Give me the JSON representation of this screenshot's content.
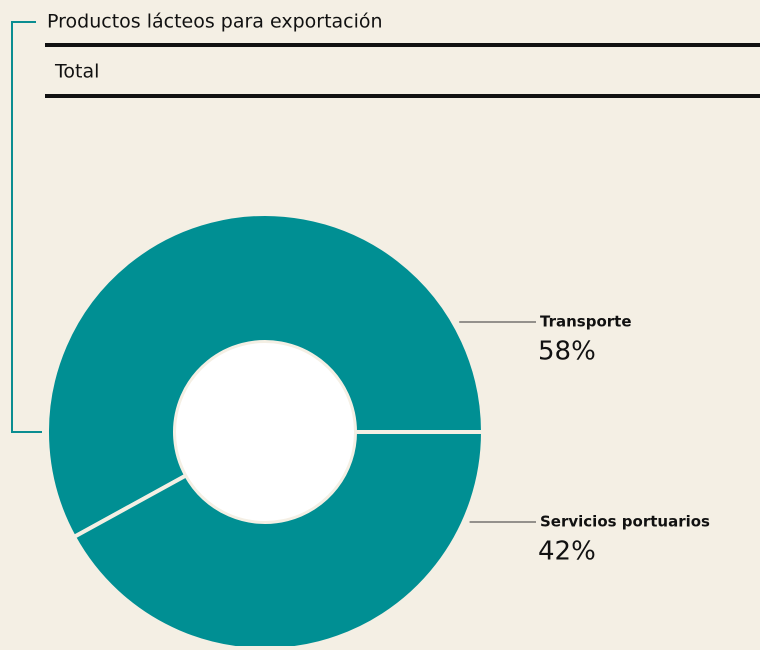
{
  "chart_data": {
    "type": "pie",
    "title": "Productos lácteos para exportación",
    "subtitle": "Total",
    "categories": [
      "Transporte",
      "Servicios portuarios"
    ],
    "values": [
      58,
      42
    ],
    "value_labels": [
      "58%",
      "42%"
    ],
    "color": "#008f93"
  }
}
